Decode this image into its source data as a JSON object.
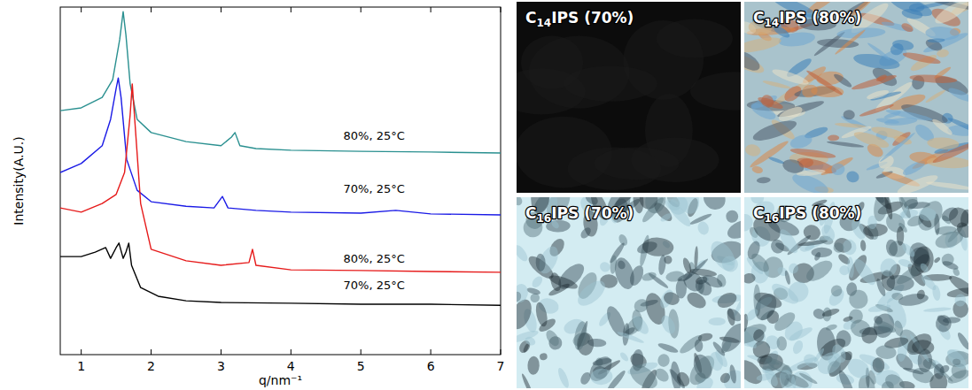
{
  "chart_data": {
    "type": "line",
    "x_label": "q/nm⁻¹",
    "y_label": "Intensity(A.U.)",
    "xlim": [
      0.7,
      7
    ],
    "xticks": [
      1,
      2,
      3,
      4,
      5,
      6,
      7
    ],
    "ylim": [
      0,
      100
    ],
    "tick_labels": "x",
    "series": [
      {
        "color": "#2a9090",
        "x": [
          0.7,
          1.0,
          1.3,
          1.45,
          1.55,
          1.6,
          1.64,
          1.7,
          1.8,
          2.0,
          2.5,
          3.0,
          3.15,
          3.2,
          3.27,
          3.5,
          4,
          5,
          6,
          7
        ],
        "values": [
          70.2,
          71.0,
          74.0,
          79.1,
          90.6,
          98.7,
          91.9,
          77.9,
          67.7,
          63.9,
          61.3,
          60.1,
          62.6,
          63.9,
          60.1,
          59.3,
          58.8,
          58.5,
          58.3,
          58.0
        ]
      },
      {
        "color": "#1a1ae6",
        "x": [
          0.7,
          1.0,
          1.3,
          1.42,
          1.5,
          1.53,
          1.57,
          1.65,
          1.8,
          2.0,
          2.5,
          2.9,
          3.02,
          3.1,
          3.5,
          4,
          5,
          5.5,
          6,
          7
        ],
        "values": [
          52.4,
          55.0,
          60.1,
          67.7,
          76.6,
          79.6,
          74.0,
          56.2,
          47.3,
          44.0,
          42.7,
          42.2,
          45.5,
          42.2,
          41.5,
          41.0,
          40.7,
          41.5,
          40.5,
          40.2
        ]
      },
      {
        "color": "#e61a1a",
        "x": [
          0.7,
          1.0,
          1.3,
          1.5,
          1.62,
          1.7,
          1.73,
          1.77,
          1.85,
          2.0,
          2.5,
          3.0,
          3.4,
          3.45,
          3.5,
          4,
          5,
          6,
          7
        ],
        "values": [
          42.2,
          41.0,
          43.5,
          46.1,
          52.4,
          69.0,
          77.9,
          66.4,
          43.5,
          30.3,
          27.0,
          25.7,
          26.5,
          30.3,
          25.7,
          24.4,
          24.2,
          23.9,
          23.7
        ]
      },
      {
        "color": "#000000",
        "x": [
          0.7,
          1.0,
          1.2,
          1.35,
          1.42,
          1.5,
          1.54,
          1.6,
          1.64,
          1.68,
          1.72,
          1.85,
          2.1,
          2.5,
          3,
          4,
          5,
          6,
          7
        ],
        "values": [
          28.2,
          28.2,
          29.5,
          30.8,
          27.7,
          30.8,
          32.1,
          27.7,
          29.5,
          32.1,
          25.7,
          19.3,
          16.8,
          15.5,
          15.0,
          14.8,
          14.5,
          14.5,
          14.2
        ]
      }
    ],
    "annotations": [
      {
        "text": "80%, 25°C",
        "x": 4.75,
        "y": 61.8
      },
      {
        "text": "70%, 25°C",
        "x": 4.75,
        "y": 46.6
      },
      {
        "text": "80%, 25°C",
        "x": 4.75,
        "y": 26.5
      },
      {
        "text": "70%, 25°C",
        "x": 4.75,
        "y": 18.8
      }
    ]
  },
  "panels": [
    {
      "title": "C14IPS (70%)"
    },
    {
      "title": "C14IPS (80%)"
    },
    {
      "title": "C16IPS (70%)"
    },
    {
      "title": "C16IPS (80%)"
    }
  ]
}
